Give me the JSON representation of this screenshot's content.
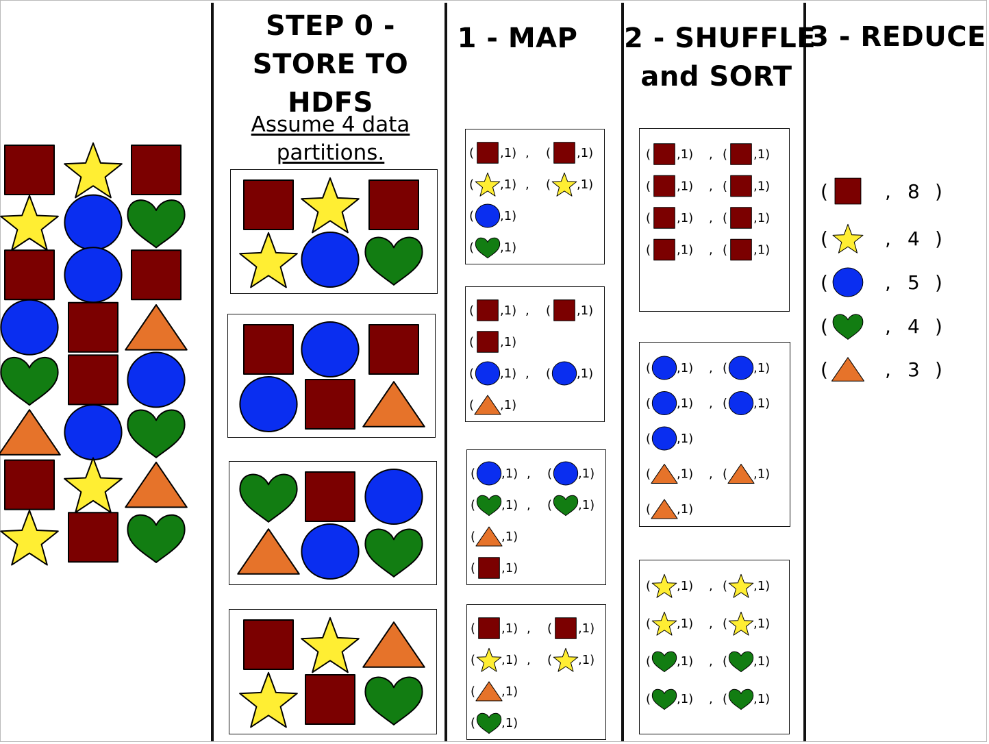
{
  "colors": {
    "square": "#7b0000",
    "star": "#ffee33",
    "circle": "#0a2ef0",
    "heart": "#127d12",
    "triangle": "#e6732a"
  },
  "columns": [
    {
      "id": "raw",
      "title_lines": []
    },
    {
      "id": "store",
      "title_lines": [
        "STEP 0 -",
        "STORE  TO",
        "HDFS"
      ],
      "note_lines": [
        "Assume 4 data",
        "partitions."
      ]
    },
    {
      "id": "map",
      "title_lines": [
        "1 - MAP"
      ]
    },
    {
      "id": "shuffle",
      "title_lines": [
        "2 - SHUFFLE",
        "and SORT"
      ]
    },
    {
      "id": "reduce",
      "title_lines": [
        "3 - REDUCE"
      ]
    }
  ],
  "raw_data": [
    [
      "square",
      "star",
      "square"
    ],
    [
      "star",
      "circle",
      "heart"
    ],
    [
      "square",
      "circle",
      "square"
    ],
    [
      "circle",
      "square",
      "triangle"
    ],
    [
      "heart",
      "square",
      "circle"
    ],
    [
      "triangle",
      "circle",
      "heart"
    ],
    [
      "square",
      "star",
      "triangle"
    ],
    [
      "star",
      "square",
      "heart"
    ]
  ],
  "partitions": [
    [
      "square",
      "star",
      "square",
      "star",
      "circle",
      "heart"
    ],
    [
      "square",
      "circle",
      "square",
      "circle",
      "square",
      "triangle"
    ],
    [
      "heart",
      "square",
      "circle",
      "triangle",
      "circle",
      "heart"
    ],
    [
      "square",
      "star",
      "triangle",
      "star",
      "square",
      "heart"
    ]
  ],
  "pair_value": ",1)",
  "map_outputs": [
    [
      [
        "square",
        "square"
      ],
      [
        "star",
        "star"
      ],
      [
        "circle"
      ],
      [
        "heart"
      ]
    ],
    [
      [
        "square",
        "square"
      ],
      [
        "square"
      ],
      [
        "circle",
        "circle"
      ],
      [
        "triangle"
      ]
    ],
    [
      [
        "circle",
        "circle"
      ],
      [
        "heart",
        "heart"
      ],
      [
        "triangle"
      ],
      [
        "square"
      ]
    ],
    [
      [
        "square",
        "square"
      ],
      [
        "star",
        "star"
      ],
      [
        "triangle"
      ],
      [
        "heart"
      ]
    ]
  ],
  "shuffle_outputs": [
    [
      [
        "square",
        "square"
      ],
      [
        "square",
        "square"
      ],
      [
        "square",
        "square"
      ],
      [
        "square",
        "square"
      ]
    ],
    [
      [
        "circle",
        "circle"
      ],
      [
        "circle",
        "circle"
      ],
      [
        "circle"
      ],
      [
        "triangle",
        "triangle"
      ],
      [
        "triangle"
      ]
    ],
    [
      [
        "star",
        "star"
      ],
      [
        "star",
        "star"
      ],
      [
        "heart",
        "heart"
      ],
      [
        "heart",
        "heart"
      ]
    ]
  ],
  "reduce_outputs": [
    {
      "shape": "square",
      "count": "8"
    },
    {
      "shape": "star",
      "count": "4"
    },
    {
      "shape": "circle",
      "count": "5"
    },
    {
      "shape": "heart",
      "count": "4"
    },
    {
      "shape": "triangle",
      "count": "3"
    }
  ]
}
